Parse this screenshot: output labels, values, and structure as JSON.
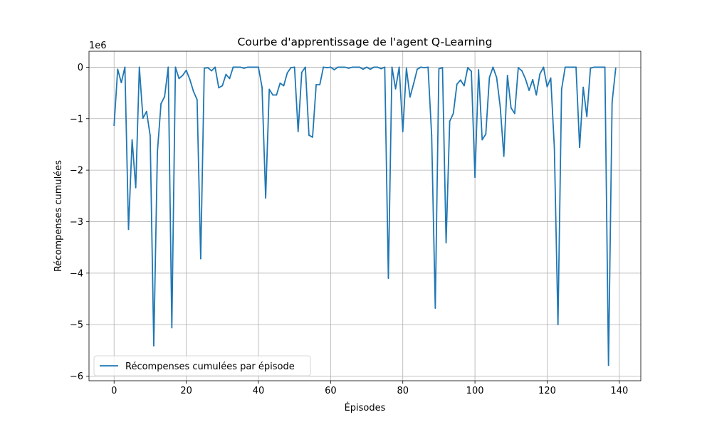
{
  "chart_data": {
    "type": "line",
    "title": "Courbe d'apprentissage de l'agent Q-Learning",
    "xlabel": "Épisodes",
    "ylabel": "Récompenses cumulées",
    "y_scale_label": "1e6",
    "xlim": [
      -6.95,
      145.95
    ],
    "ylim": [
      -6.09,
      0.31
    ],
    "grid": true,
    "legend_position": "lower-left",
    "x_ticks": [
      0,
      20,
      40,
      60,
      80,
      100,
      120,
      140
    ],
    "y_ticks": [
      0,
      -1,
      -2,
      -3,
      -4,
      -5,
      -6
    ],
    "x_tick_labels": [
      "0",
      "20",
      "40",
      "60",
      "80",
      "100",
      "120",
      "140"
    ],
    "y_tick_labels": [
      "0",
      "−1",
      "−2",
      "−3",
      "−4",
      "−5",
      "−6"
    ],
    "series": [
      {
        "name": "Récompenses cumulées par épisode",
        "color": "#1f77b4",
        "x_start": 0,
        "values": [
          -1.13,
          -0.04,
          -0.3,
          0.0,
          -3.15,
          -1.41,
          -2.34,
          0.0,
          -0.99,
          -0.86,
          -1.33,
          -5.41,
          -1.65,
          -0.71,
          -0.57,
          0.0,
          -5.06,
          0.0,
          -0.22,
          -0.16,
          -0.06,
          -0.24,
          -0.47,
          -0.63,
          -3.72,
          -0.02,
          -0.01,
          -0.07,
          0.0,
          -0.4,
          -0.36,
          -0.14,
          -0.22,
          0.0,
          0.0,
          0.0,
          -0.02,
          0.0,
          0.0,
          0.0,
          0.0,
          -0.39,
          -2.54,
          -0.43,
          -0.54,
          -0.54,
          -0.31,
          -0.36,
          -0.11,
          -0.01,
          0.0,
          -1.25,
          -0.1,
          0.0,
          -1.32,
          -1.36,
          -0.34,
          -0.34,
          0.0,
          -0.01,
          0.0,
          -0.05,
          0.0,
          0.0,
          0.0,
          -0.02,
          0.0,
          0.0,
          0.0,
          -0.04,
          0.0,
          -0.04,
          0.0,
          0.0,
          -0.03,
          0.0,
          -4.1,
          0.0,
          -0.42,
          0.0,
          -1.25,
          -0.02,
          -0.58,
          -0.32,
          -0.04,
          0.0,
          -0.01,
          0.0,
          -1.33,
          -4.68,
          -0.03,
          -0.01,
          -3.41,
          -1.05,
          -0.9,
          -0.33,
          -0.25,
          -0.36,
          -0.01,
          -0.08,
          -2.14,
          -0.05,
          -1.41,
          -1.3,
          -0.2,
          0.0,
          -0.2,
          -0.77,
          -1.73,
          -0.16,
          -0.79,
          -0.9,
          -0.01,
          -0.07,
          -0.23,
          -0.45,
          -0.24,
          -0.54,
          -0.13,
          0.0,
          -0.38,
          -0.21,
          -1.57,
          -5.0,
          -0.43,
          0.0,
          0.0,
          0.0,
          0.0,
          -1.56,
          -0.39,
          -0.96,
          -0.02,
          0.0,
          0.0,
          0.0,
          0.0,
          -5.79,
          -0.68,
          -0.02
        ]
      }
    ]
  }
}
